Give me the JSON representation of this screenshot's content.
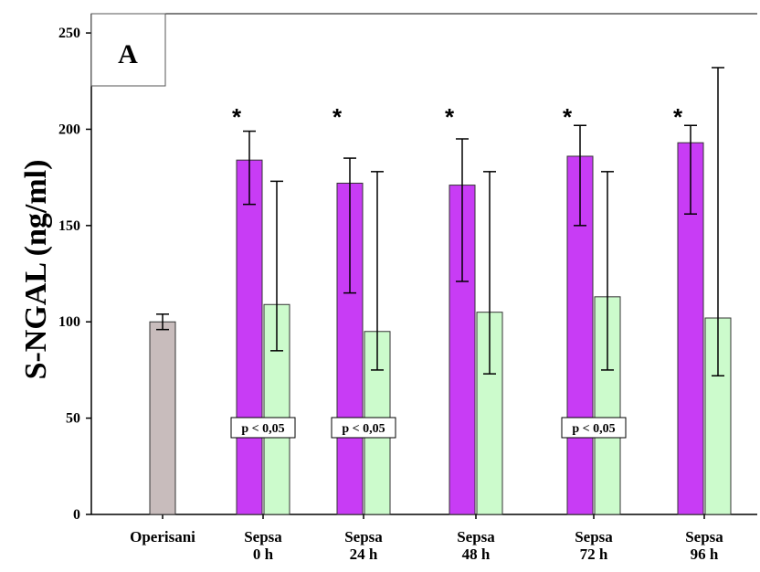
{
  "colors": {
    "control": "#c8bcbc",
    "sepsis_purple": "#c83cf5",
    "sepsis_green": "#ccfbcc",
    "axis": "#000000"
  },
  "chart_data": {
    "type": "bar",
    "title": "",
    "panel_label": "A",
    "xlabel": "",
    "ylabel": "S-NGAL (ng/ml)",
    "ylim": [
      0,
      250
    ],
    "yticks": [
      0,
      50,
      100,
      150,
      200,
      250
    ],
    "categories": [
      [
        "Operisani"
      ],
      [
        "Sepsa",
        "0 h"
      ],
      [
        "Sepsa",
        "24 h"
      ],
      [
        "Sepsa",
        "48 h"
      ],
      [
        "Sepsa",
        "72 h"
      ],
      [
        "Sepsa",
        "96 h"
      ]
    ],
    "series": [
      {
        "values": [
          100,
          184,
          172,
          171,
          186,
          193
        ],
        "err_low": [
          96,
          161,
          115,
          121,
          150,
          156
        ],
        "err_high": [
          104,
          199,
          185,
          195,
          202,
          202
        ]
      },
      {
        "values": [
          null,
          109,
          95,
          105,
          113,
          102
        ],
        "err_low": [
          null,
          85,
          75,
          73,
          75,
          72
        ],
        "err_high": [
          null,
          173,
          178,
          178,
          178,
          232
        ]
      }
    ],
    "significance_marks": [
      "",
      "*",
      "*",
      "*",
      "*",
      "*"
    ],
    "annotations": [
      "",
      "p < 0,05",
      "p < 0,05",
      "",
      "p < 0,05",
      ""
    ],
    "grid": false,
    "legend": "none"
  }
}
